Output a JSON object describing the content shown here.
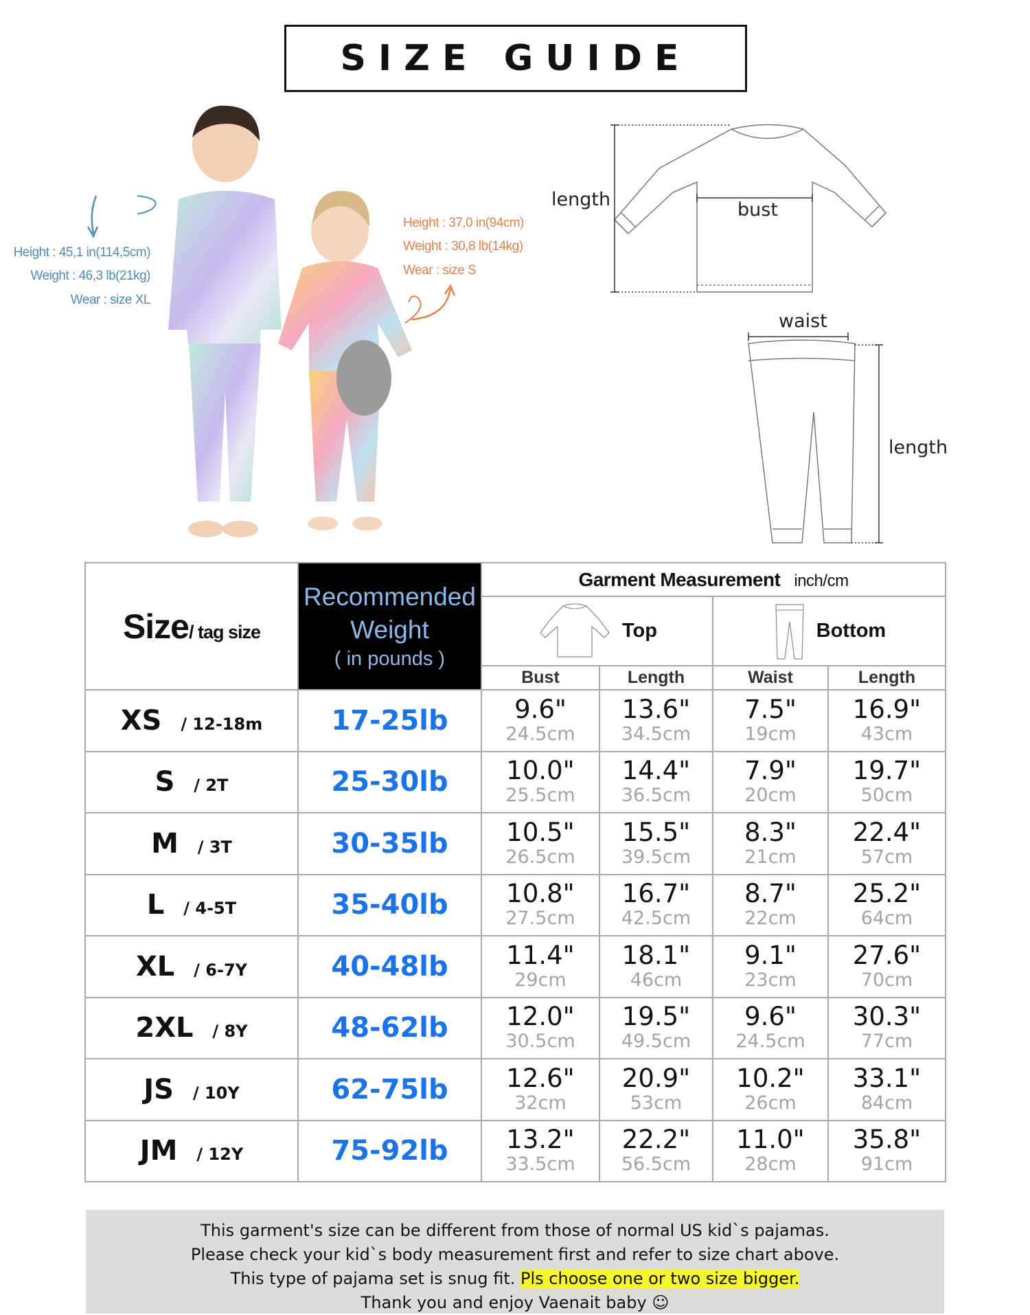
{
  "title": "SIZE GUIDE",
  "boy_model": {
    "height": "Height : 45,1 in(114,5cm)",
    "weight": "Weight : 46,3 lb(21kg)",
    "wear": "Wear : size XL"
  },
  "girl_model": {
    "height": "Height : 37,0 in(94cm)",
    "weight": "Weight : 30,8 lb(14kg)",
    "wear": "Wear : size S"
  },
  "diagram": {
    "top_length": "length",
    "bust": "bust",
    "waist": "waist",
    "bottom_length": "length"
  },
  "table": {
    "size_header": "Size",
    "tag_header": "/ tag size",
    "weight_header": [
      "Recommended",
      "Weight",
      "( in pounds )"
    ],
    "garment_header": "Garment Measurement",
    "unit": "inch/cm",
    "top_label": "Top",
    "bottom_label": "Bottom",
    "sub_headers": [
      "Bust",
      "Length",
      "Waist",
      "Length"
    ],
    "rows": [
      {
        "size": "XS",
        "tag": "/ 12-18m",
        "weight": "17-25lb",
        "bust": [
          "9.6\"",
          "24.5cm"
        ],
        "top_length": [
          "13.6\"",
          "34.5cm"
        ],
        "waist": [
          "7.5\"",
          "19cm"
        ],
        "bottom_length": [
          "16.9\"",
          "43cm"
        ]
      },
      {
        "size": "S",
        "tag": "/ 2T",
        "weight": "25-30lb",
        "bust": [
          "10.0\"",
          "25.5cm"
        ],
        "top_length": [
          "14.4\"",
          "36.5cm"
        ],
        "waist": [
          "7.9\"",
          "20cm"
        ],
        "bottom_length": [
          "19.7\"",
          "50cm"
        ]
      },
      {
        "size": "M",
        "tag": "/ 3T",
        "weight": "30-35lb",
        "bust": [
          "10.5\"",
          "26.5cm"
        ],
        "top_length": [
          "15.5\"",
          "39.5cm"
        ],
        "waist": [
          "8.3\"",
          "21cm"
        ],
        "bottom_length": [
          "22.4\"",
          "57cm"
        ]
      },
      {
        "size": "L",
        "tag": "/ 4-5T",
        "weight": "35-40lb",
        "bust": [
          "10.8\"",
          "27.5cm"
        ],
        "top_length": [
          "16.7\"",
          "42.5cm"
        ],
        "waist": [
          "8.7\"",
          "22cm"
        ],
        "bottom_length": [
          "25.2\"",
          "64cm"
        ]
      },
      {
        "size": "XL",
        "tag": "/ 6-7Y",
        "weight": "40-48lb",
        "bust": [
          "11.4\"",
          "29cm"
        ],
        "top_length": [
          "18.1\"",
          "46cm"
        ],
        "waist": [
          "9.1\"",
          "23cm"
        ],
        "bottom_length": [
          "27.6\"",
          "70cm"
        ]
      },
      {
        "size": "2XL",
        "tag": "/ 8Y",
        "weight": "48-62lb",
        "bust": [
          "12.0\"",
          "30.5cm"
        ],
        "top_length": [
          "19.5\"",
          "49.5cm"
        ],
        "waist": [
          "9.6\"",
          "24.5cm"
        ],
        "bottom_length": [
          "30.3\"",
          "77cm"
        ]
      },
      {
        "size": "JS",
        "tag": "/ 10Y",
        "weight": "62-75lb",
        "bust": [
          "12.6\"",
          "32cm"
        ],
        "top_length": [
          "20.9\"",
          "53cm"
        ],
        "waist": [
          "10.2\"",
          "26cm"
        ],
        "bottom_length": [
          "33.1\"",
          "84cm"
        ]
      },
      {
        "size": "JM",
        "tag": "/ 12Y",
        "weight": "75-92lb",
        "bust": [
          "13.2\"",
          "33.5cm"
        ],
        "top_length": [
          "22.2\"",
          "56.5cm"
        ],
        "waist": [
          "11.0\"",
          "28cm"
        ],
        "bottom_length": [
          "35.8\"",
          "91cm"
        ]
      }
    ]
  },
  "footer": {
    "line1": "This garment's size can be different from those of normal US kid`s pajamas.",
    "line2": "Please check your kid`s body measurement first and refer to size chart above.",
    "line3a": "This type of pajama set is snug fit.",
    "line3b": "Pls choose one or two size bigger.",
    "line4": "Thank you and enjoy Vaenait baby",
    "smiley": "☺"
  },
  "colors": {
    "weight_blue": "#1a73e8",
    "weight_header_bg": "#000000",
    "boy_note": "#4f8db5",
    "girl_note": "#e8804a",
    "highlight": "#f6f72d",
    "footer_bg": "#dcdcdc"
  }
}
